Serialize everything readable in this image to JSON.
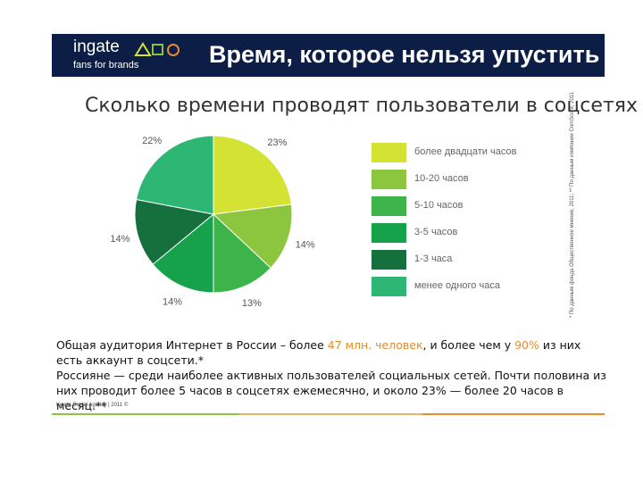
{
  "header": {
    "logo_name": "ingate",
    "logo_tagline": "fans for brands",
    "title": "Время, которое нельзя упустить"
  },
  "subtitle": "Сколько времени проводят пользователи в соцсетях",
  "chart_data": {
    "type": "pie",
    "categories": [
      "более двадцати часов",
      "10-20 часов",
      "5-10 часов",
      "3-5 часов",
      "1-3 часа",
      "менее одного часа"
    ],
    "values": [
      23,
      14,
      13,
      14,
      14,
      22
    ],
    "value_labels": [
      "23%",
      "14%",
      "13%",
      "14%",
      "14%",
      "22%"
    ],
    "colors": [
      "#d4e233",
      "#8cc63f",
      "#3cb44a",
      "#16a14b",
      "#16703e",
      "#2eb774"
    ],
    "legend_position": "right"
  },
  "footnote": "* По данным фонда Общественное мнение, 2011; ** По данным компании ComScore, 2011",
  "body": {
    "p1_a": "Общая аудитория Интернет в России – более ",
    "p1_b": "47 млн. человек",
    "p1_c": ", и более чем у ",
    "p1_d": "90%",
    "p1_e": " из них есть аккаунт в соцсети.*",
    "p2": "Россияне — среди наиболее активных пользователей социальных сетей. Почти половина из них проводит более 5 часов в соцсетях ежемесячно, и около 23% — более 20 часов в месяц.**"
  },
  "copyright": "Ingate Digital Agency | 2011 ©",
  "rule_colors": [
    "#8cc63f",
    "#e9b56a",
    "#e98b2a"
  ]
}
